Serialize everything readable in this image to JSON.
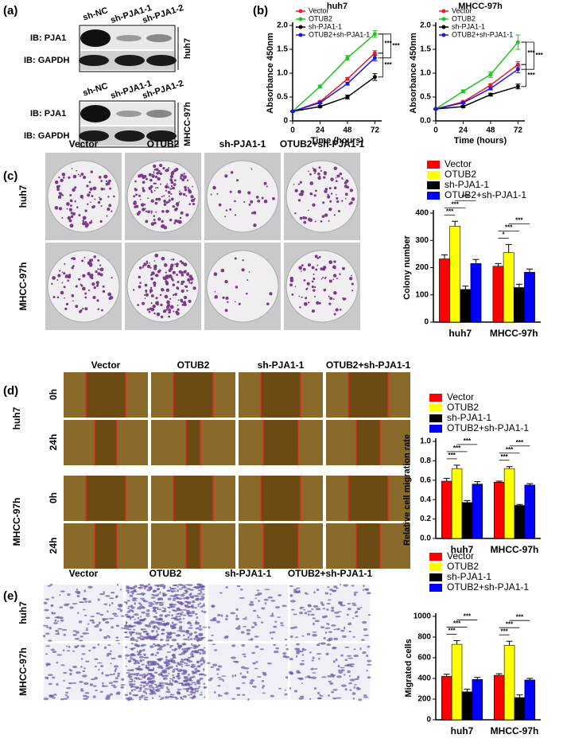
{
  "panel_labels": [
    "(a)",
    "(b)",
    "(c)",
    "(d)",
    "(e)"
  ],
  "western_blot": [
    {
      "cell_line": "huh7",
      "lanes": [
        "sh-NC",
        "sh-PJA1-1",
        "sh-PJA1-2"
      ],
      "rows": [
        "IB: PJA1",
        "IB: GAPDH"
      ]
    },
    {
      "cell_line": "MHCC-97h",
      "lanes": [
        "sh-NC",
        "sh-PJA1-1",
        "sh-PJA1-2"
      ],
      "rows": [
        "IB: PJA1",
        "IB: GAPDH"
      ]
    }
  ],
  "colony_images": {
    "columns": [
      "Vector",
      "OTUB2",
      "sh-PJA1-1",
      "OTUB2+sh-PJA1-1"
    ],
    "rows": [
      "huh7",
      "MHCC-97h"
    ]
  },
  "wound_images": {
    "columns": [
      "Vector",
      "OTUB2",
      "sh-PJA1-1",
      "OTUB2+sh-PJA1-1"
    ],
    "rows": [
      "huh7",
      "MHCC-97h"
    ],
    "time_labels": [
      "0h",
      "24h",
      "0h",
      "24h"
    ]
  },
  "transwell_images": {
    "columns": [
      "Vector",
      "OTUB2",
      "sh-PJA1-1",
      "OTUB2+sh-PJA1-1"
    ],
    "rows": [
      "huh7",
      "MHCC-97h"
    ]
  },
  "chart_data": [
    {
      "type": "line",
      "title": "huh7",
      "x": [
        0,
        24,
        48,
        72
      ],
      "xlim": [
        0,
        78
      ],
      "xticks": [
        0,
        24,
        48,
        72
      ],
      "ylim": [
        0,
        2
      ],
      "yticks": [
        0,
        0.5,
        {
          "value": 1,
          "label": "1.0"
        },
        1.5,
        {
          "value": 2,
          "label": "2.0"
        }
      ],
      "xlabel": "Time (hours)",
      "ylabel": "Absorbance 450nm",
      "legend": "upper left",
      "series": [
        {
          "name": "Vector",
          "color": "#ee1c25",
          "values": [
            0.2,
            0.4,
            0.88,
            1.42
          ],
          "errors": [
            0.01,
            0.02,
            0.03,
            0.05
          ]
        },
        {
          "name": "OTUB2",
          "color": "#22c322",
          "values": [
            0.2,
            0.72,
            1.32,
            1.82
          ],
          "errors": [
            0.01,
            0.03,
            0.05,
            0.07
          ]
        },
        {
          "name": "sh-PJA1-1",
          "color": "#000000",
          "values": [
            0.2,
            0.3,
            0.5,
            0.92
          ],
          "errors": [
            0.01,
            0.02,
            0.04,
            0.07
          ]
        },
        {
          "name": "OTUB2+sh-PJA1-1",
          "color": "#1a1aee",
          "values": [
            0.2,
            0.38,
            0.78,
            1.32
          ],
          "errors": [
            0.01,
            0.02,
            0.03,
            0.06
          ]
        }
      ],
      "significance": [
        "***",
        "***",
        "***"
      ]
    },
    {
      "type": "line",
      "title": "MHCC-97h",
      "x": [
        0,
        24,
        48,
        72
      ],
      "xlim": [
        0,
        78
      ],
      "xticks": [
        0,
        24,
        48,
        72
      ],
      "ylim": [
        0,
        2
      ],
      "yticks": [
        {
          "value": 0,
          "label": "0.0"
        },
        0.5,
        {
          "value": 1,
          "label": "1.0"
        },
        1.5,
        {
          "value": 2,
          "label": "2.0"
        }
      ],
      "xlabel": "Time (hours)",
      "ylabel": "Absorbance 450nm",
      "legend": "upper left",
      "series": [
        {
          "name": "Vector",
          "color": "#ee1c25",
          "values": [
            0.25,
            0.4,
            0.75,
            1.18
          ],
          "errors": [
            0.01,
            0.02,
            0.03,
            0.06
          ]
        },
        {
          "name": "OTUB2",
          "color": "#22c322",
          "values": [
            0.25,
            0.62,
            0.97,
            1.65
          ],
          "errors": [
            0.01,
            0.03,
            0.06,
            0.15
          ]
        },
        {
          "name": "sh-PJA1-1",
          "color": "#000000",
          "values": [
            0.25,
            0.3,
            0.55,
            0.72
          ],
          "errors": [
            0.01,
            0.02,
            0.03,
            0.05
          ]
        },
        {
          "name": "OTUB2+sh-PJA1-1",
          "color": "#1a1aee",
          "values": [
            0.25,
            0.38,
            0.68,
            1.08
          ],
          "errors": [
            0.01,
            0.02,
            0.03,
            0.07
          ]
        }
      ],
      "significance": [
        "***",
        "***",
        "***"
      ]
    },
    {
      "type": "bar",
      "categories": [
        "huh7",
        "MHCC-97h"
      ],
      "ylabel": "Colony number",
      "ylim": [
        0,
        400
      ],
      "yticks": [
        0,
        100,
        200,
        300,
        400
      ],
      "legend": "top",
      "series": [
        {
          "name": "Vector",
          "color": "#ff0000",
          "values": [
            232,
            205
          ],
          "errors": [
            15,
            10
          ]
        },
        {
          "name": "OTUB2",
          "color": "#ffff00",
          "values": [
            352,
            255
          ],
          "errors": [
            18,
            30
          ]
        },
        {
          "name": "sh-PJA1-1",
          "color": "#000000",
          "values": [
            120,
            127
          ],
          "errors": [
            12,
            12
          ]
        },
        {
          "name": "OTUB2+sh-PJA1-1",
          "color": "#0000ff",
          "values": [
            215,
            183
          ],
          "errors": [
            15,
            12
          ]
        }
      ],
      "significance": [
        [
          "***",
          "***",
          "***"
        ],
        [
          "*",
          "***",
          "***"
        ]
      ]
    },
    {
      "type": "bar",
      "categories": [
        "huh7",
        "MHCC-97h"
      ],
      "ylabel": "Relative cell migration rate",
      "ylim": [
        0,
        1
      ],
      "yticks": [
        {
          "value": 0,
          "label": "0.0"
        },
        0.2,
        0.4,
        0.6,
        0.8,
        {
          "value": 1,
          "label": "1.0"
        }
      ],
      "legend": "top",
      "series": [
        {
          "name": "Vector",
          "color": "#ff0000",
          "values": [
            0.59,
            0.58
          ],
          "errors": [
            0.03,
            0.01
          ]
        },
        {
          "name": "OTUB2",
          "color": "#ffff00",
          "values": [
            0.72,
            0.72
          ],
          "errors": [
            0.035,
            0.02
          ]
        },
        {
          "name": "sh-PJA1-1",
          "color": "#000000",
          "values": [
            0.37,
            0.34
          ],
          "errors": [
            0.02,
            0.01
          ]
        },
        {
          "name": "OTUB2+sh-PJA1-1",
          "color": "#0000ff",
          "values": [
            0.56,
            0.55
          ],
          "errors": [
            0.025,
            0.015
          ]
        }
      ],
      "significance": [
        [
          "***",
          "***",
          "***"
        ],
        [
          "***",
          "***",
          "***"
        ]
      ]
    },
    {
      "type": "bar",
      "categories": [
        "huh7",
        "MHCC-97h"
      ],
      "ylabel": "Migrated cells",
      "ylim": [
        0,
        1000
      ],
      "yticks": [
        0,
        200,
        400,
        600,
        800,
        1000
      ],
      "legend": "top",
      "series": [
        {
          "name": "Vector",
          "color": "#ff0000",
          "values": [
            420,
            430
          ],
          "errors": [
            20,
            15
          ]
        },
        {
          "name": "OTUB2",
          "color": "#ffff00",
          "values": [
            730,
            720
          ],
          "errors": [
            35,
            40
          ]
        },
        {
          "name": "sh-PJA1-1",
          "color": "#000000",
          "values": [
            270,
            215
          ],
          "errors": [
            25,
            25
          ]
        },
        {
          "name": "OTUB2+sh-PJA1-1",
          "color": "#0000ff",
          "values": [
            390,
            385
          ],
          "errors": [
            20,
            15
          ]
        }
      ],
      "significance": [
        [
          "***",
          "***",
          "***"
        ],
        [
          "***",
          "***",
          "***"
        ]
      ]
    }
  ]
}
